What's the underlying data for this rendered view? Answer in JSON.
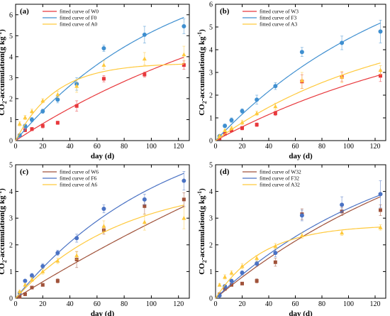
{
  "chart_data": [
    {
      "type": "scatter",
      "panel_label": "(a)",
      "xlabel": "day (d)",
      "ylabel_main": "CO",
      "ylabel_sub": "2",
      "ylabel_rest": "-accumulation(g kg",
      "ylabel_sup": "-1",
      "ylabel_close": ")",
      "xlim": [
        0,
        128
      ],
      "ylim": [
        0,
        6.5
      ],
      "xticks": [
        0,
        20,
        40,
        60,
        80,
        100,
        120
      ],
      "yticks": [
        0,
        1,
        2,
        3,
        4,
        5,
        6
      ],
      "legend_position": "top-left",
      "series": [
        {
          "name": "fitted curve of W0",
          "color": "#e8383c",
          "marker": "square",
          "x": [
            3,
            7,
            12,
            20,
            31,
            45,
            65,
            95,
            124
          ],
          "y": [
            0.25,
            0.5,
            0.55,
            0.7,
            0.85,
            1.65,
            2.95,
            3.15,
            3.6
          ],
          "err": [
            0.05,
            0.08,
            0.08,
            0.1,
            0.08,
            0.25,
            0.15,
            0.12,
            0.2
          ],
          "fit": {
            "a": 9.0,
            "b": 0.0047
          }
        },
        {
          "name": "fitted curve of F0",
          "color": "#3f8fd0",
          "marker": "circle",
          "x": [
            3,
            7,
            12,
            20,
            31,
            45,
            65,
            95,
            124
          ],
          "y": [
            0.25,
            0.7,
            1.0,
            1.4,
            1.95,
            2.7,
            4.4,
            5.05,
            5.45
          ],
          "err": [
            0.05,
            0.08,
            0.1,
            0.1,
            0.15,
            0.3,
            0.15,
            0.4,
            0.35
          ],
          "fit": {
            "a": 8.9,
            "b": 0.0087
          }
        },
        {
          "name": "fitted curve of A0",
          "color": "#ffc93c",
          "marker": "triangle",
          "x": [
            3,
            7,
            12,
            20,
            31,
            45,
            65,
            95,
            124
          ],
          "y": [
            0.8,
            1.1,
            1.4,
            1.9,
            2.2,
            2.6,
            3.6,
            3.9,
            4.1
          ],
          "err": [
            0.1,
            0.1,
            0.1,
            0.1,
            0.15,
            0.3,
            0.2,
            0.3,
            0.4
          ],
          "fit": {
            "a": 3.7,
            "b": 0.034
          }
        }
      ]
    },
    {
      "type": "scatter",
      "panel_label": "(b)",
      "xlabel": "day (d)",
      "ylabel_main": "CO",
      "ylabel_sub": "2",
      "ylabel_rest": "-accumulation(g kg",
      "ylabel_sup": "-1",
      "ylabel_close": ")",
      "xlim": [
        0,
        128
      ],
      "ylim": [
        0,
        6
      ],
      "xticks": [
        0,
        20,
        40,
        60,
        80,
        100,
        120
      ],
      "yticks": [
        0,
        1,
        2,
        3,
        4,
        5,
        6
      ],
      "legend_position": "top-left",
      "series": [
        {
          "name": "fitted curve of W3",
          "color": "#e8383c",
          "marker": "square",
          "x": [
            3,
            7,
            12,
            20,
            31,
            45,
            65,
            95,
            124
          ],
          "y": [
            0.1,
            0.3,
            0.45,
            0.55,
            0.7,
            1.2,
            2.6,
            2.8,
            2.85
          ],
          "err": [
            0.05,
            0.05,
            0.05,
            0.08,
            0.08,
            0.1,
            0.3,
            0.2,
            0.25
          ],
          "fit": {
            "a": 6.0,
            "b": 0.0053
          }
        },
        {
          "name": "fitted curve of F3",
          "color": "#3f8fd0",
          "marker": "circle",
          "x": [
            3,
            7,
            12,
            20,
            31,
            45,
            65,
            95,
            124
          ],
          "y": [
            0.2,
            0.65,
            0.9,
            1.3,
            1.8,
            2.4,
            3.9,
            4.3,
            4.8
          ],
          "err": [
            0.05,
            0.08,
            0.1,
            0.1,
            0.2,
            0.15,
            0.2,
            0.3,
            0.5
          ],
          "fit": {
            "a": 9.0,
            "b": 0.0069
          }
        },
        {
          "name": "fitted curve of A3",
          "color": "#ffc93c",
          "marker": "triangle",
          "x": [
            3,
            7,
            12,
            20,
            31,
            45,
            65,
            95,
            124
          ],
          "y": [
            0.2,
            0.45,
            0.55,
            0.8,
            1.2,
            1.5,
            2.65,
            2.8,
            3.1
          ],
          "err": [
            0.05,
            0.05,
            0.08,
            0.1,
            0.1,
            0.15,
            0.35,
            0.25,
            0.2
          ],
          "fit": {
            "a": 5.6,
            "b": 0.0076
          }
        }
      ]
    },
    {
      "type": "scatter",
      "panel_label": "(c)",
      "xlabel": "day (d)",
      "ylabel_main": "CO",
      "ylabel_sub": "2",
      "ylabel_rest": "-accumulation(g kg",
      "ylabel_sup": "-1",
      "ylabel_close": ")",
      "xlim": [
        0,
        128
      ],
      "ylim": [
        0,
        5
      ],
      "xticks": [
        0,
        20,
        40,
        60,
        80,
        100,
        120
      ],
      "yticks": [
        0,
        1,
        2,
        3,
        4,
        5
      ],
      "legend_position": "top-left",
      "series": [
        {
          "name": "fitted curve of W6",
          "color": "#a0523a",
          "marker": "square",
          "x": [
            3,
            7,
            12,
            20,
            31,
            45,
            65,
            95,
            124
          ],
          "y": [
            0.05,
            0.15,
            0.4,
            0.5,
            0.65,
            1.45,
            2.55,
            3.45,
            3.7
          ],
          "err": [
            0.03,
            0.05,
            0.05,
            0.05,
            0.08,
            0.3,
            0.15,
            0.3,
            0.25
          ],
          "fit": {
            "a": 15.0,
            "b": 0.0021
          }
        },
        {
          "name": "fitted curve of F6",
          "color": "#4a72c4",
          "marker": "circle",
          "x": [
            3,
            7,
            12,
            20,
            31,
            45,
            65,
            95,
            124
          ],
          "y": [
            0.2,
            0.65,
            0.85,
            1.2,
            1.7,
            2.25,
            3.35,
            3.7,
            4.4
          ],
          "err": [
            0.05,
            0.05,
            0.08,
            0.1,
            0.1,
            0.15,
            0.15,
            0.2,
            0.35
          ],
          "fit": {
            "a": 7.0,
            "b": 0.0089
          }
        },
        {
          "name": "fitted curve of A6",
          "color": "#ffc93c",
          "marker": "triangle",
          "x": [
            3,
            7,
            12,
            20,
            31,
            45,
            65,
            95,
            124
          ],
          "y": [
            0.25,
            0.5,
            0.7,
            1.0,
            1.4,
            1.6,
            2.7,
            2.85,
            3.0
          ],
          "err": [
            0.05,
            0.05,
            0.08,
            0.1,
            0.1,
            0.15,
            0.2,
            0.3,
            0.4
          ],
          "fit": {
            "a": 4.4,
            "b": 0.0127
          }
        }
      ]
    },
    {
      "type": "scatter",
      "panel_label": "(d)",
      "xlabel": "day (d)",
      "ylabel_main": "CO",
      "ylabel_sub": "2",
      "ylabel_rest": "-accumulation(g kg",
      "ylabel_sup": "-1",
      "ylabel_close": ")",
      "xlim": [
        0,
        128
      ],
      "ylim": [
        0,
        5
      ],
      "xticks": [
        0,
        20,
        40,
        60,
        80,
        100,
        120
      ],
      "yticks": [
        0,
        1,
        2,
        3,
        4,
        5
      ],
      "legend_position": "top-left",
      "series": [
        {
          "name": "fitted curve of W32",
          "color": "#a0523a",
          "marker": "square",
          "x": [
            3,
            7,
            12,
            20,
            31,
            45,
            65,
            95,
            124
          ],
          "y": [
            0.15,
            0.35,
            0.5,
            0.55,
            0.65,
            1.35,
            3.15,
            3.25,
            3.3
          ],
          "err": [
            0.03,
            0.05,
            0.05,
            0.05,
            0.08,
            0.15,
            0.2,
            0.15,
            0.2
          ],
          "fit": {
            "a": 8.0,
            "b": 0.0052
          }
        },
        {
          "name": "fitted curve of F32",
          "color": "#4a72c4",
          "marker": "circle",
          "x": [
            3,
            7,
            12,
            20,
            31,
            45,
            65,
            95,
            124
          ],
          "y": [
            0.1,
            0.45,
            0.65,
            0.95,
            1.3,
            1.7,
            3.1,
            3.5,
            3.9
          ],
          "err": [
            0.03,
            0.05,
            0.05,
            0.08,
            0.1,
            0.15,
            0.2,
            0.3,
            0.5
          ],
          "fit": {
            "a": 6.5,
            "b": 0.0073
          }
        },
        {
          "name": "fitted curve of A32",
          "color": "#ffc93c",
          "marker": "triangle",
          "x": [
            3,
            7,
            12,
            20,
            31,
            45,
            65,
            95,
            124
          ],
          "y": [
            0.5,
            0.8,
            0.95,
            1.2,
            1.5,
            1.95,
            2.35,
            2.45,
            2.65
          ],
          "err": [
            0.05,
            0.08,
            0.08,
            0.1,
            0.1,
            0.1,
            0.1,
            0.1,
            0.1
          ],
          "fit": {
            "a": 2.75,
            "b": 0.028
          }
        }
      ]
    }
  ]
}
